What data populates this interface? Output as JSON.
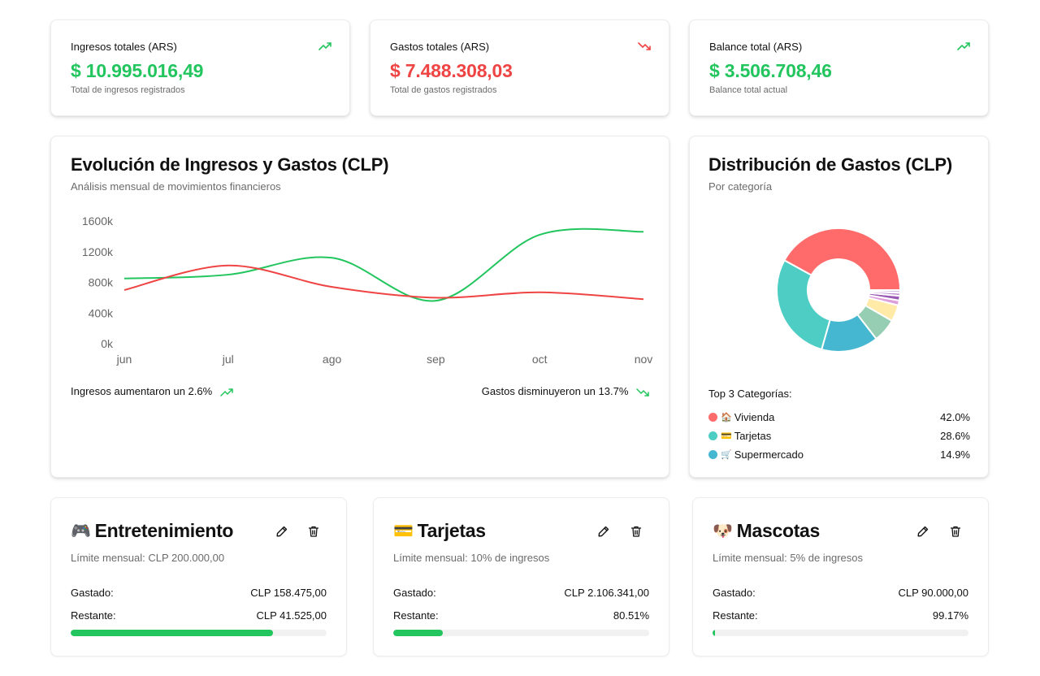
{
  "stats": [
    {
      "label": "Ingresos totales (ARS)",
      "value": "$ 10.995.016,49",
      "sub": "Total de ingresos registrados",
      "trend": "trending-up-icon",
      "color": "#22c55e"
    },
    {
      "label": "Gastos totales (ARS)",
      "value": "$ 7.488.308,03",
      "sub": "Total de gastos registrados",
      "trend": "trending-down-icon",
      "color": "#ef4444"
    },
    {
      "label": "Balance total (ARS)",
      "value": "$ 3.506.708,46",
      "sub": "Balance total actual",
      "trend": "trending-up-icon",
      "color": "#22c55e"
    }
  ],
  "line_chart": {
    "title": "Evolución de Ingresos y Gastos (CLP)",
    "subtitle": "Análisis mensual de movimientos financieros",
    "footer_left": "Ingresos aumentaron un 2.6%",
    "footer_right": "Gastos disminuyeron un 13.7%"
  },
  "pie_chart": {
    "title": "Distribución de Gastos (CLP)",
    "subtitle": "Por categoría",
    "top_title": "Top 3 Categorías:",
    "top": [
      {
        "icon": "🏠",
        "label": "Vivienda",
        "pct": "42.0%",
        "color": "#ff6b6b"
      },
      {
        "icon": "💳",
        "label": "Tarjetas",
        "pct": "28.6%",
        "color": "#4ecdc4"
      },
      {
        "icon": "🛒",
        "label": "Supermercado",
        "pct": "14.9%",
        "color": "#45b7d1"
      }
    ]
  },
  "chart_data": [
    {
      "type": "line",
      "x": [
        "jun",
        "jul",
        "ago",
        "sep",
        "oct",
        "nov"
      ],
      "yticks": [
        "0k",
        "400k",
        "800k",
        "1200k",
        "1600k"
      ],
      "ylim": [
        0,
        1600
      ],
      "grid": false,
      "series": [
        {
          "values": [
            850,
            900,
            1120,
            560,
            1420,
            1460
          ],
          "color": "#22c55e"
        },
        {
          "values": [
            700,
            1020,
            740,
            600,
            670,
            580
          ],
          "color": "#ef4444"
        }
      ]
    },
    {
      "type": "pie",
      "donut": true,
      "slices": [
        {
          "label": "Vivienda",
          "value": 42.0,
          "color": "#ff6b6b"
        },
        {
          "label": "Tarjetas",
          "value": 28.6,
          "color": "#4ecdc4"
        },
        {
          "label": "Supermercado",
          "value": 14.9,
          "color": "#45b7d1"
        },
        {
          "value": 6.2,
          "color": "#96ceb4"
        },
        {
          "value": 4.3,
          "color": "#ffeaa7"
        },
        {
          "value": 1.3,
          "color": "#dda0dd"
        },
        {
          "value": 1.2,
          "color": "#9b59b6"
        },
        {
          "value": 0.8,
          "color": "#bb8fce"
        },
        {
          "value": 0.7,
          "color": "#d7bde2"
        }
      ]
    }
  ],
  "budgets": [
    {
      "emoji": "🎮",
      "title": "Entretenimiento",
      "limit": "Límite mensual: CLP 200.000,00",
      "spent_label": "Gastado:",
      "spent": "CLP 158.475,00",
      "rem_label": "Restante:",
      "remaining": "CLP 41.525,00",
      "progress_pct": 79.2
    },
    {
      "emoji": "💳",
      "title": "Tarjetas",
      "limit": "Límite mensual: 10% de ingresos",
      "spent_label": "Gastado:",
      "spent": "CLP 2.106.341,00",
      "rem_label": "Restante:",
      "remaining": "80.51%",
      "progress_pct": 19.49
    },
    {
      "emoji": "🐶",
      "title": "Mascotas",
      "limit": "Límite mensual: 5% de ingresos",
      "spent_label": "Gastado:",
      "spent": "CLP 90.000,00",
      "rem_label": "Restante:",
      "remaining": "99.17%",
      "progress_pct": 0.83
    }
  ]
}
